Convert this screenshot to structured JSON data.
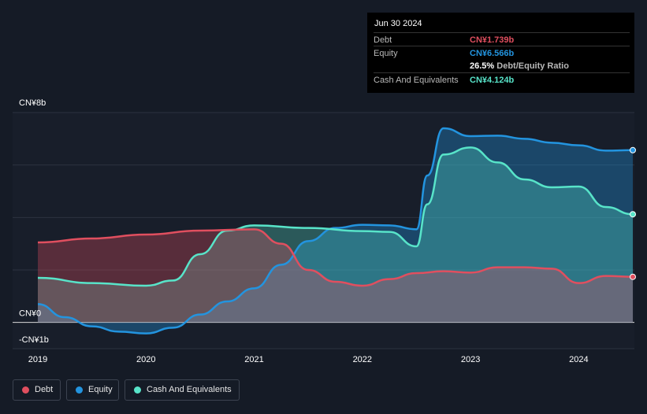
{
  "colors": {
    "debt": "#e04f5f",
    "equity": "#2394df",
    "cash": "#58e4c9",
    "background": "#151b26",
    "axis_text": "#ffffff"
  },
  "tooltip": {
    "date": "Jun 30 2024",
    "debt_label": "Debt",
    "debt_value": "CN¥1.739b",
    "equity_label": "Equity",
    "equity_value": "CN¥6.566b",
    "ratio_pct": "26.5%",
    "ratio_label": "Debt/Equity Ratio",
    "cash_label": "Cash And Equivalents",
    "cash_value": "CN¥4.124b"
  },
  "legend": [
    {
      "key": "debt",
      "label": "Debt"
    },
    {
      "key": "equity",
      "label": "Equity"
    },
    {
      "key": "cash",
      "label": "Cash And Equivalents"
    }
  ],
  "chart_data": {
    "type": "line",
    "title": "",
    "xlabel": "",
    "ylabel": "",
    "unit": "CN¥ billions",
    "xlim": [
      2019.0,
      2024.5
    ],
    "ylim": [
      -1,
      8
    ],
    "y_tick_labels": [
      {
        "value": 8,
        "label": "CN¥8b"
      },
      {
        "value": 0,
        "label": "CN¥0"
      },
      {
        "value": -1,
        "label": "-CN¥1b"
      }
    ],
    "x_tick_labels": [
      {
        "value": 2019,
        "label": "2019"
      },
      {
        "value": 2020,
        "label": "2020"
      },
      {
        "value": 2021,
        "label": "2021"
      },
      {
        "value": 2022,
        "label": "2022"
      },
      {
        "value": 2023,
        "label": "2023"
      },
      {
        "value": 2024,
        "label": "2024"
      }
    ],
    "grid": true,
    "legend_position": "bottom-left",
    "series": [
      {
        "name": "Debt",
        "key": "debt",
        "points": [
          [
            2019.0,
            3.05
          ],
          [
            2019.5,
            3.2
          ],
          [
            2020.0,
            3.35
          ],
          [
            2020.5,
            3.5
          ],
          [
            2021.0,
            3.55
          ],
          [
            2021.25,
            3.0
          ],
          [
            2021.5,
            2.0
          ],
          [
            2021.75,
            1.55
          ],
          [
            2022.0,
            1.4
          ],
          [
            2022.25,
            1.65
          ],
          [
            2022.5,
            1.88
          ],
          [
            2022.75,
            1.95
          ],
          [
            2023.0,
            1.9
          ],
          [
            2023.25,
            2.1
          ],
          [
            2023.5,
            2.1
          ],
          [
            2023.75,
            2.05
          ],
          [
            2024.0,
            1.5
          ],
          [
            2024.25,
            1.77
          ],
          [
            2024.5,
            1.739
          ]
        ]
      },
      {
        "name": "Equity",
        "key": "equity",
        "points": [
          [
            2019.0,
            0.7
          ],
          [
            2019.25,
            0.2
          ],
          [
            2019.5,
            -0.15
          ],
          [
            2019.75,
            -0.35
          ],
          [
            2020.0,
            -0.42
          ],
          [
            2020.25,
            -0.2
          ],
          [
            2020.5,
            0.3
          ],
          [
            2020.75,
            0.8
          ],
          [
            2021.0,
            1.3
          ],
          [
            2021.25,
            2.2
          ],
          [
            2021.5,
            3.1
          ],
          [
            2021.75,
            3.6
          ],
          [
            2022.0,
            3.72
          ],
          [
            2022.25,
            3.7
          ],
          [
            2022.5,
            3.55
          ],
          [
            2022.6,
            5.6
          ],
          [
            2022.75,
            7.4
          ],
          [
            2023.0,
            7.1
          ],
          [
            2023.25,
            7.12
          ],
          [
            2023.5,
            7.0
          ],
          [
            2023.75,
            6.85
          ],
          [
            2024.0,
            6.75
          ],
          [
            2024.25,
            6.55
          ],
          [
            2024.5,
            6.566
          ]
        ]
      },
      {
        "name": "Cash And Equivalents",
        "key": "cash",
        "points": [
          [
            2019.0,
            1.7
          ],
          [
            2019.5,
            1.5
          ],
          [
            2020.0,
            1.4
          ],
          [
            2020.25,
            1.6
          ],
          [
            2020.5,
            2.6
          ],
          [
            2020.75,
            3.5
          ],
          [
            2021.0,
            3.7
          ],
          [
            2021.5,
            3.6
          ],
          [
            2022.0,
            3.48
          ],
          [
            2022.25,
            3.45
          ],
          [
            2022.5,
            2.9
          ],
          [
            2022.6,
            4.5
          ],
          [
            2022.75,
            6.4
          ],
          [
            2023.0,
            6.67
          ],
          [
            2023.25,
            6.1
          ],
          [
            2023.5,
            5.45
          ],
          [
            2023.75,
            5.15
          ],
          [
            2024.0,
            5.18
          ],
          [
            2024.25,
            4.4
          ],
          [
            2024.5,
            4.124
          ]
        ]
      }
    ]
  }
}
